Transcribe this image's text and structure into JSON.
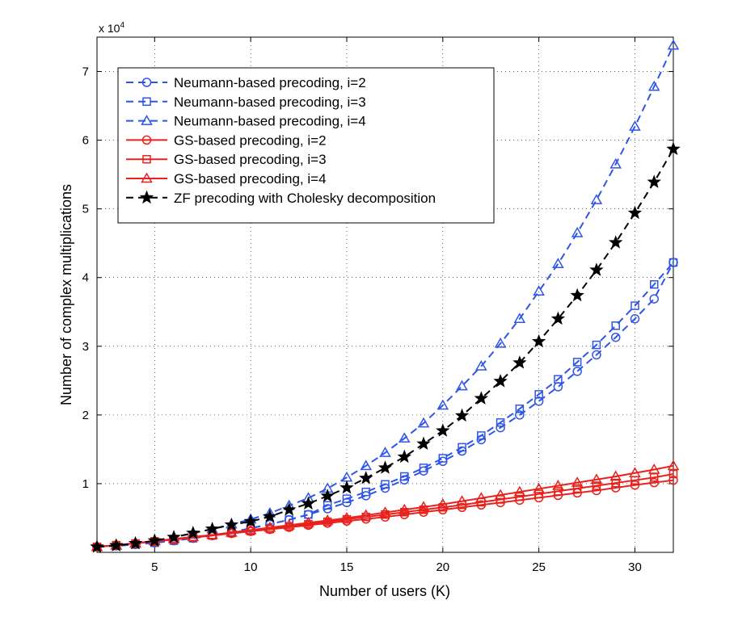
{
  "chart_data": {
    "type": "line",
    "xlabel": "Number of users (K)",
    "ylabel": "Number of complex multiplications",
    "y_multiplier_label": "x 10",
    "y_multiplier_exponent": "4",
    "xlim": [
      2,
      32
    ],
    "ylim": [
      0,
      75000
    ],
    "x_ticks": [
      5,
      10,
      15,
      20,
      25,
      30
    ],
    "y_ticks": [
      10000,
      20000,
      30000,
      40000,
      50000,
      60000,
      70000
    ],
    "y_tick_labels": [
      "1",
      "2",
      "3",
      "4",
      "5",
      "6",
      "7"
    ],
    "grid": "dotted",
    "legend_position": "top-left",
    "x": [
      2,
      3,
      4,
      5,
      6,
      7,
      8,
      9,
      10,
      11,
      12,
      13,
      14,
      15,
      16,
      17,
      18,
      19,
      20,
      21,
      22,
      23,
      24,
      25,
      26,
      27,
      28,
      29,
      30,
      31,
      32
    ],
    "series": [
      {
        "name": "Neumann-based precoding, i=2",
        "color": "#2f55e8",
        "dash": "dashed",
        "marker": "circle",
        "values": [
          800,
          950,
          1150,
          1400,
          1700,
          2050,
          2450,
          2950,
          3500,
          4100,
          4750,
          5500,
          6350,
          7250,
          8250,
          9350,
          10550,
          11850,
          13250,
          14750,
          16400,
          18150,
          20000,
          22000,
          24100,
          26350,
          28750,
          31300,
          34000,
          36900,
          42200
        ]
      },
      {
        "name": "Neumann-based precoding, i=3",
        "color": "#2f55e8",
        "dash": "dashed",
        "marker": "square",
        "values": [
          800,
          950,
          1150,
          1400,
          1700,
          2050,
          2450,
          2950,
          3500,
          4100,
          4750,
          5500,
          6850,
          7800,
          8800,
          9900,
          11050,
          12300,
          13700,
          15300,
          17000,
          18900,
          20900,
          23000,
          25200,
          27700,
          30200,
          33000,
          35900,
          39000,
          42200
        ]
      },
      {
        "name": "Neumann-based precoding, i=4",
        "color": "#2f55e8",
        "dash": "dashed",
        "marker": "triangle",
        "values": [
          800,
          1000,
          1300,
          1700,
          2200,
          2800,
          3400,
          4100,
          4800,
          5700,
          6800,
          7900,
          9300,
          10900,
          12600,
          14500,
          16600,
          18800,
          21400,
          24200,
          27100,
          30400,
          34000,
          38000,
          42000,
          46500,
          51300,
          56500,
          62000,
          67800,
          73800
        ]
      },
      {
        "name": "GS-based precoding, i=2",
        "color": "#e8211c",
        "dash": "solid",
        "marker": "circle",
        "values": [
          800,
          1050,
          1300,
          1600,
          1850,
          2150,
          2450,
          2750,
          3050,
          3350,
          3650,
          3950,
          4250,
          4550,
          4850,
          5150,
          5500,
          5850,
          6200,
          6550,
          6900,
          7250,
          7600,
          7950,
          8300,
          8650,
          9000,
          9400,
          9800,
          10150,
          10500
        ]
      },
      {
        "name": "GS-based precoding, i=3",
        "color": "#e8211c",
        "dash": "solid",
        "marker": "square",
        "values": [
          800,
          1050,
          1300,
          1600,
          1900,
          2200,
          2500,
          2800,
          3100,
          3400,
          3750,
          4100,
          4450,
          4800,
          5150,
          5500,
          5850,
          6200,
          6550,
          6900,
          7300,
          7700,
          8100,
          8500,
          8900,
          9300,
          9700,
          10100,
          10500,
          10900,
          11400
        ]
      },
      {
        "name": "GS-based precoding, i=4",
        "color": "#e8211c",
        "dash": "solid",
        "marker": "triangle",
        "values": [
          800,
          1050,
          1350,
          1650,
          1950,
          2250,
          2550,
          2900,
          3250,
          3600,
          3950,
          4300,
          4650,
          5000,
          5400,
          5800,
          6200,
          6600,
          7000,
          7450,
          7900,
          8350,
          8800,
          9250,
          9700,
          10150,
          10600,
          11050,
          11550,
          12050,
          12600
        ]
      },
      {
        "name": "ZF precoding with Cholesky decomposition",
        "color": "#000000",
        "dash": "dashed",
        "marker": "star",
        "values": [
          800,
          1000,
          1300,
          1700,
          2200,
          2800,
          3400,
          4000,
          4500,
          5200,
          6200,
          7100,
          8200,
          9400,
          10800,
          12300,
          13900,
          15800,
          17700,
          19900,
          22400,
          24900,
          27600,
          30700,
          34000,
          37400,
          41100,
          45100,
          49400,
          53900,
          58700
        ]
      }
    ]
  }
}
